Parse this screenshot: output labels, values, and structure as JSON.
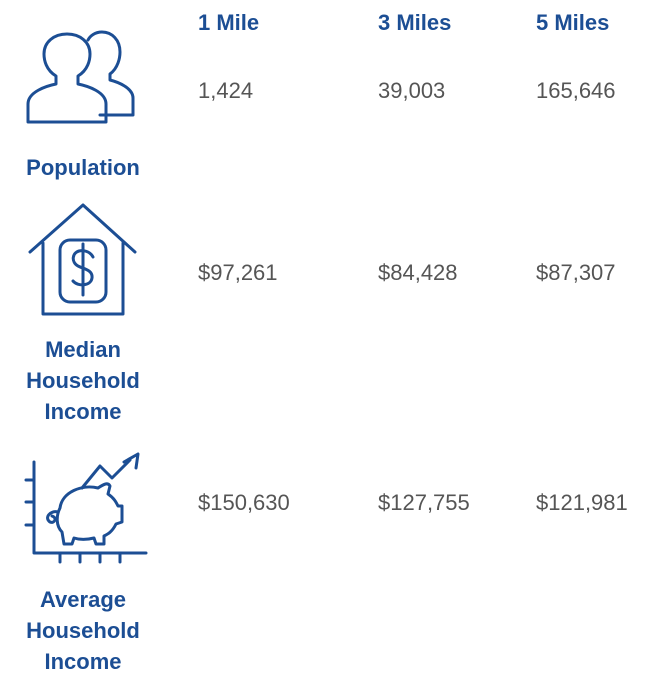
{
  "header": [
    "1 Mile",
    "3 Miles",
    "5 Miles"
  ],
  "rows": [
    {
      "label": "Population",
      "values": [
        "1,424",
        "39,003",
        "165,646"
      ]
    },
    {
      "label": "Median Household Income",
      "values": [
        "$97,261",
        "$84,428",
        "$87,307"
      ]
    },
    {
      "label": "Average Household Income",
      "values": [
        "$150,630",
        "$127,755",
        "$121,981"
      ]
    }
  ]
}
